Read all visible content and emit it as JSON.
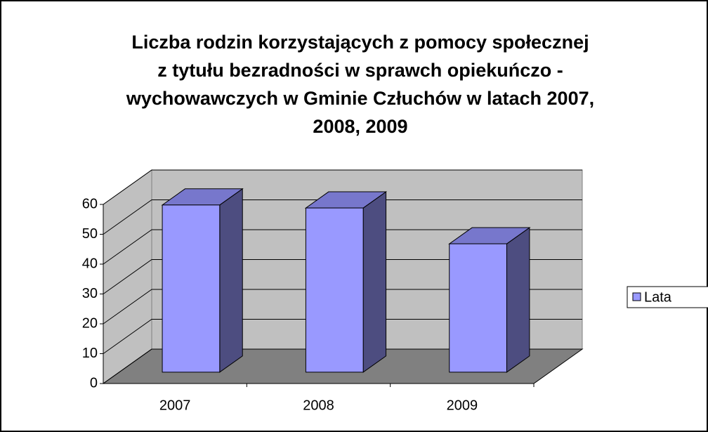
{
  "chart_data": {
    "type": "bar3d",
    "title": [
      "Liczba rodzin korzystających z pomocy społecznej",
      "z tytułu bezradności w sprawch opiekuńczo -",
      "wychowawczych w Gminie Człuchów w latach 2007,",
      "2008, 2009"
    ],
    "categories": [
      "2007",
      "2008",
      "2009"
    ],
    "series": [
      {
        "name": "Lata",
        "color": "#9999ff",
        "values": [
          56,
          55,
          43
        ]
      }
    ],
    "ylim": [
      0,
      60
    ],
    "yticks": [
      0,
      10,
      20,
      30,
      40,
      50,
      60
    ],
    "grid": true,
    "legend": "right"
  }
}
